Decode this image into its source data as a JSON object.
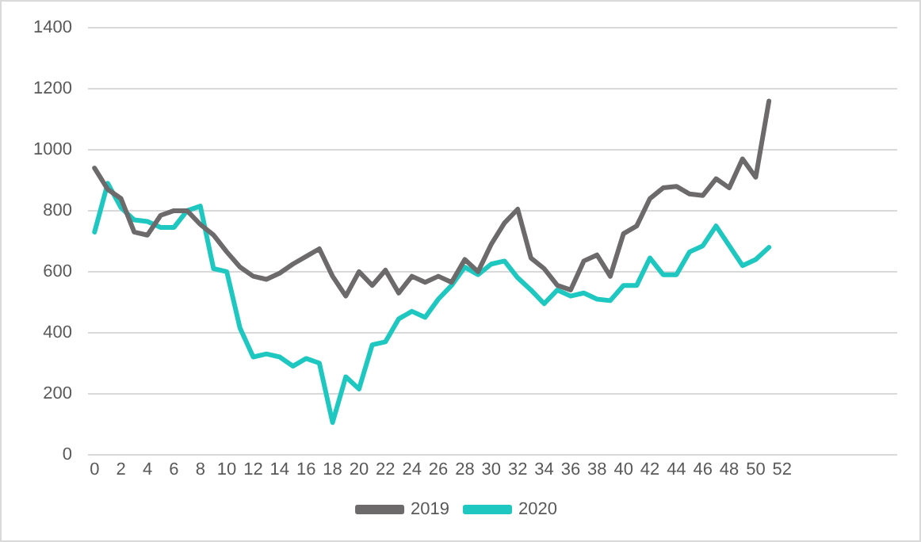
{
  "chart_data": {
    "type": "line",
    "x": [
      0,
      1,
      2,
      3,
      4,
      5,
      6,
      7,
      8,
      9,
      10,
      11,
      12,
      13,
      14,
      15,
      16,
      17,
      18,
      19,
      20,
      21,
      22,
      23,
      24,
      25,
      26,
      27,
      28,
      29,
      30,
      31,
      32,
      33,
      34,
      35,
      36,
      37,
      38,
      39,
      40,
      41,
      42,
      43,
      44,
      45,
      46,
      47,
      48,
      49,
      50,
      51
    ],
    "series": [
      {
        "name": "2019",
        "color": "#6d6a6b",
        "values": [
          940,
          870,
          840,
          730,
          720,
          785,
          800,
          800,
          755,
          720,
          665,
          615,
          585,
          575,
          595,
          625,
          650,
          675,
          585,
          520,
          600,
          555,
          605,
          530,
          585,
          565,
          585,
          565,
          640,
          600,
          690,
          760,
          805,
          645,
          610,
          555,
          540,
          635,
          655,
          585,
          725,
          750,
          840,
          875,
          880,
          855,
          850,
          905,
          875,
          970,
          910,
          1160
        ]
      },
      {
        "name": "2020",
        "color": "#1ec8c0",
        "values": [
          730,
          890,
          810,
          770,
          765,
          745,
          745,
          800,
          815,
          610,
          600,
          415,
          320,
          330,
          320,
          290,
          315,
          300,
          105,
          255,
          215,
          360,
          370,
          445,
          470,
          450,
          510,
          555,
          615,
          590,
          625,
          635,
          580,
          540,
          495,
          540,
          520,
          530,
          510,
          505,
          555,
          555,
          645,
          590,
          590,
          665,
          685,
          750,
          685,
          620,
          640,
          680
        ]
      }
    ],
    "xlim": [
      -0.5,
      60.7
    ],
    "xticks": [
      0,
      2,
      4,
      6,
      8,
      10,
      12,
      14,
      16,
      18,
      20,
      22,
      24,
      26,
      28,
      30,
      32,
      34,
      36,
      38,
      40,
      42,
      44,
      46,
      48,
      50,
      52
    ],
    "ylim": [
      0,
      1400
    ],
    "yticks": [
      0,
      200,
      400,
      600,
      800,
      1000,
      1200,
      1400
    ],
    "grid": "y",
    "legend": "bottom",
    "marker": "none",
    "line_style": "solid"
  }
}
